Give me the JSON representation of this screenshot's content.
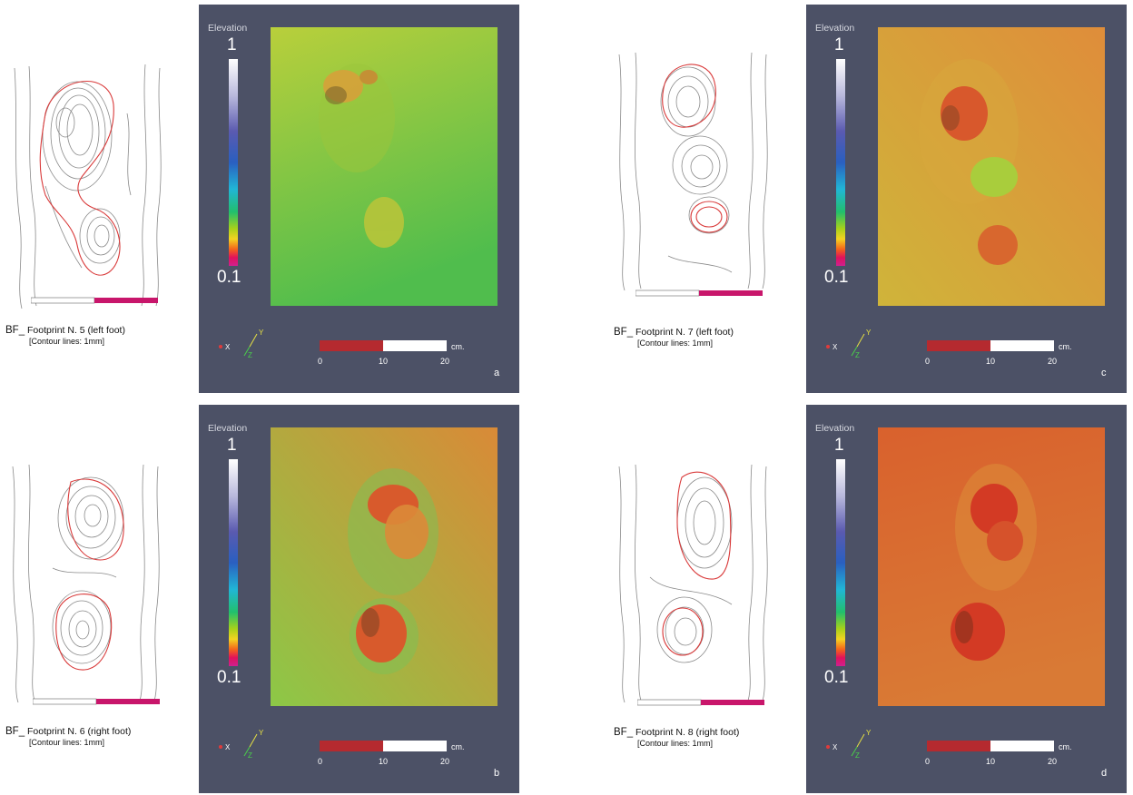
{
  "panels": [
    {
      "letter": "a",
      "caption_title_prefix": "BF_",
      "caption_title": "Footprint N. 5 (left foot)",
      "caption_sub": "[Contour lines: 1mm]",
      "legend": {
        "title": "Elevation",
        "max": "1",
        "min": "0.1"
      },
      "scale": {
        "unit": "cm.",
        "ticks": [
          "0",
          "10",
          "20"
        ]
      },
      "axes": {
        "x": "X",
        "y": "Y",
        "z": "Z"
      },
      "foot": "left",
      "colors": {
        "ground_top": "#b9cf3b",
        "ground_bottom": "#50bd4d",
        "print": "#d7a13a"
      }
    },
    {
      "letter": "b",
      "caption_title_prefix": "BF_",
      "caption_title": "Footprint N. 6 (right foot)",
      "caption_sub": "[Contour lines: 1mm]",
      "legend": {
        "title": "Elevation",
        "max": "1",
        "min": "0.1"
      },
      "scale": {
        "unit": "cm.",
        "ticks": [
          "0",
          "10",
          "20"
        ]
      },
      "axes": {
        "x": "X",
        "y": "Y",
        "z": "Z"
      },
      "foot": "right",
      "colors": {
        "ground_top": "#d98a37",
        "ground_bottom": "#8cc847",
        "print": "#d85a2c"
      }
    },
    {
      "letter": "c",
      "caption_title_prefix": "BF_",
      "caption_title": "Footprint N. 7 (left foot)",
      "caption_sub": "[Contour lines: 1mm]",
      "legend": {
        "title": "Elevation",
        "max": "1",
        "min": "0.1"
      },
      "scale": {
        "unit": "cm.",
        "ticks": [
          "0",
          "10",
          "20"
        ]
      },
      "axes": {
        "x": "X",
        "y": "Y",
        "z": "Z"
      },
      "foot": "left",
      "colors": {
        "ground_top": "#df8d3a",
        "ground_bottom": "#cfb43a",
        "print": "#d8582c"
      }
    },
    {
      "letter": "d",
      "caption_title_prefix": "BF_",
      "caption_title": "Footprint N. 8 (right foot)",
      "caption_sub": "[Contour lines: 1mm]",
      "legend": {
        "title": "Elevation",
        "max": "1",
        "min": "0.1"
      },
      "scale": {
        "unit": "cm.",
        "ticks": [
          "0",
          "10",
          "20"
        ]
      },
      "axes": {
        "x": "X",
        "y": "Y",
        "z": "Z"
      },
      "foot": "right",
      "colors": {
        "ground_top": "#d9612d",
        "ground_bottom": "#d97a35",
        "print": "#d33a24"
      }
    }
  ]
}
